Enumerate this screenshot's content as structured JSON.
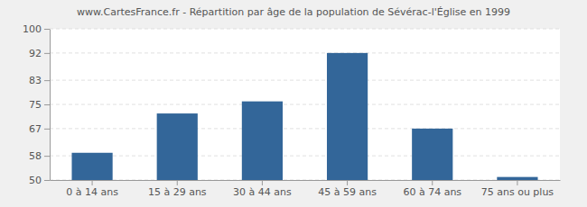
{
  "chart_data": {
    "type": "bar",
    "title": "www.CartesFrance.fr - Répartition par âge de la population de Sévérac-l'Église en 1999",
    "categories": [
      "0 à 14 ans",
      "15 à 29 ans",
      "30 à 44 ans",
      "45 à 59 ans",
      "60 à 74 ans",
      "75 ans ou plus"
    ],
    "values": [
      59,
      72,
      76,
      92,
      67,
      51
    ],
    "color": "#336699",
    "ylim": [
      50,
      100
    ],
    "yticks": [
      50,
      58,
      67,
      75,
      83,
      92,
      100
    ],
    "grid": true
  }
}
